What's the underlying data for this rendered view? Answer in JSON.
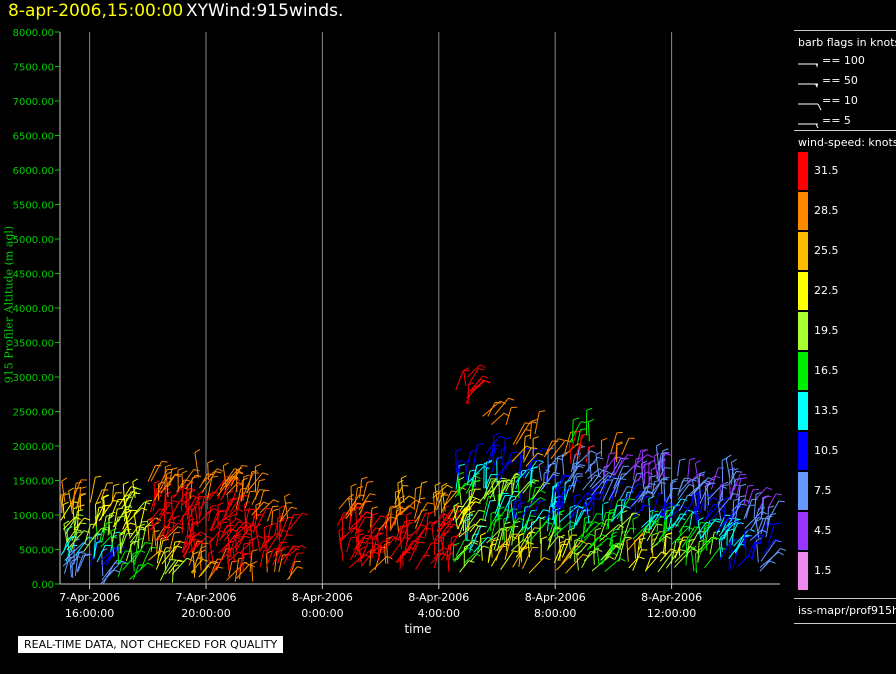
{
  "header": {
    "time": "8-apr-2006,15:00:00",
    "name": "XYWind:915winds."
  },
  "chart_data": {
    "type": "scatter",
    "title": "XYWind:915winds.",
    "subtitle": "8-apr-2006,15:00:00",
    "xlabel": "time",
    "ylabel": "915 Profiler Altitude (m agl)",
    "ylim": [
      0,
      8000
    ],
    "y_ticks": [
      "8000.00",
      "7500.00",
      "7000.00",
      "6500.00",
      "6000.00",
      "5500.00",
      "5000.00",
      "4500.00",
      "4000.00",
      "3500.00",
      "3000.00",
      "2500.00",
      "2000.00",
      "1500.00",
      "1000.00",
      "500.00",
      "0.00"
    ],
    "x_ticks": [
      {
        "date": "7-Apr-2006",
        "time": "16:00:00"
      },
      {
        "date": "7-Apr-2006",
        "time": "20:00:00"
      },
      {
        "date": "8-Apr-2006",
        "time": "0:00:00"
      },
      {
        "date": "8-Apr-2006",
        "time": "4:00:00"
      },
      {
        "date": "8-Apr-2006",
        "time": "8:00:00"
      },
      {
        "date": "8-Apr-2006",
        "time": "12:00:00"
      }
    ],
    "grid": "vertical",
    "series": [
      {
        "time": "7-Apr-2006 15:00",
        "levels": [
          [
            100,
            8
          ],
          [
            250,
            10
          ],
          [
            400,
            14
          ],
          [
            550,
            20
          ],
          [
            700,
            22
          ],
          [
            850,
            24
          ],
          [
            1000,
            26
          ],
          [
            1150,
            29
          ]
        ]
      },
      {
        "time": "7-Apr-2006 16:00",
        "levels": [
          [
            100,
            8
          ],
          [
            250,
            12
          ],
          [
            400,
            15
          ],
          [
            550,
            19
          ],
          [
            700,
            21
          ],
          [
            850,
            23
          ],
          [
            1000,
            24
          ],
          [
            1150,
            27
          ]
        ]
      },
      {
        "time": "7-Apr-2006 17:00",
        "levels": [
          [
            100,
            18
          ],
          [
            250,
            17
          ],
          [
            400,
            20
          ],
          [
            550,
            22
          ],
          [
            700,
            23
          ],
          [
            850,
            24
          ],
          [
            1000,
            22
          ],
          [
            1150,
            25
          ]
        ]
      },
      {
        "time": "7-Apr-2006 18:00",
        "levels": [
          [
            100,
            22
          ],
          [
            250,
            24
          ],
          [
            400,
            26
          ],
          [
            550,
            29
          ],
          [
            700,
            32
          ],
          [
            850,
            32
          ],
          [
            1000,
            33
          ],
          [
            1150,
            32
          ],
          [
            1300,
            31
          ],
          [
            1450,
            30
          ]
        ]
      },
      {
        "time": "7-Apr-2006 19:00",
        "levels": [
          [
            100,
            26
          ],
          [
            250,
            29
          ],
          [
            400,
            32
          ],
          [
            550,
            33
          ],
          [
            700,
            34
          ],
          [
            850,
            34
          ],
          [
            1000,
            33
          ],
          [
            1150,
            32
          ],
          [
            1300,
            31
          ],
          [
            1450,
            30
          ]
        ]
      },
      {
        "time": "7-Apr-2006 20:00",
        "levels": [
          [
            100,
            29
          ],
          [
            250,
            32
          ],
          [
            400,
            33
          ],
          [
            550,
            34
          ],
          [
            700,
            34
          ],
          [
            850,
            33
          ],
          [
            1000,
            32
          ],
          [
            1150,
            32
          ],
          [
            1300,
            31
          ],
          [
            1450,
            30
          ]
        ]
      },
      {
        "time": "7-Apr-2006 21:00",
        "levels": [
          [
            100,
            30
          ],
          [
            250,
            33
          ],
          [
            400,
            34
          ],
          [
            550,
            34
          ],
          [
            700,
            33
          ],
          [
            850,
            32
          ],
          [
            1000,
            31
          ],
          [
            1150,
            31
          ],
          [
            1300,
            30
          ]
        ]
      },
      {
        "time": "7-Apr-2006 22:00",
        "levels": [
          [
            100,
            31
          ],
          [
            250,
            33
          ],
          [
            400,
            33
          ],
          [
            550,
            32
          ],
          [
            700,
            32
          ],
          [
            850,
            31
          ]
        ]
      },
      {
        "time": "8-Apr-2006 0:30",
        "levels": [
          [
            250,
            32
          ],
          [
            400,
            33
          ],
          [
            550,
            34
          ],
          [
            700,
            33
          ],
          [
            850,
            32
          ],
          [
            1000,
            31
          ],
          [
            1150,
            30
          ]
        ]
      },
      {
        "time": "8-Apr-2006 1:30",
        "levels": [
          [
            250,
            31
          ],
          [
            400,
            32
          ],
          [
            550,
            33
          ],
          [
            700,
            32
          ],
          [
            850,
            31
          ]
        ]
      },
      {
        "time": "8-Apr-2006 2:30",
        "levels": [
          [
            250,
            32
          ],
          [
            400,
            33
          ],
          [
            550,
            34
          ],
          [
            700,
            33
          ],
          [
            850,
            31
          ],
          [
            1000,
            30
          ],
          [
            1150,
            27
          ]
        ]
      },
      {
        "time": "8-Apr-2006 3:30",
        "levels": [
          [
            250,
            33
          ],
          [
            400,
            34
          ],
          [
            550,
            34
          ],
          [
            700,
            33
          ],
          [
            850,
            32
          ],
          [
            1000,
            30
          ],
          [
            1150,
            28
          ]
        ]
      },
      {
        "time": "8-Apr-2006 4:30",
        "levels": [
          [
            250,
            21
          ],
          [
            400,
            18
          ],
          [
            550,
            16
          ],
          [
            700,
            22
          ],
          [
            850,
            25
          ],
          [
            1000,
            24
          ],
          [
            1150,
            21
          ],
          [
            1300,
            17
          ],
          [
            1450,
            14
          ],
          [
            1600,
            12
          ],
          [
            2700,
            32
          ],
          [
            2900,
            33
          ]
        ]
      },
      {
        "time": "8-Apr-2006 5:30",
        "levels": [
          [
            250,
            24
          ],
          [
            400,
            26
          ],
          [
            550,
            22
          ],
          [
            700,
            18
          ],
          [
            850,
            17
          ],
          [
            1000,
            15
          ],
          [
            1150,
            20
          ],
          [
            1300,
            22
          ],
          [
            1450,
            16
          ],
          [
            1600,
            13
          ],
          [
            1800,
            12
          ],
          [
            2400,
            31
          ]
        ]
      },
      {
        "time": "8-Apr-2006 6:30",
        "levels": [
          [
            250,
            26
          ],
          [
            400,
            23
          ],
          [
            550,
            21
          ],
          [
            700,
            17
          ],
          [
            850,
            14
          ],
          [
            1000,
            13
          ],
          [
            1150,
            18
          ],
          [
            1300,
            20
          ],
          [
            1450,
            14
          ],
          [
            1600,
            12
          ],
          [
            1800,
            26
          ],
          [
            2100,
            30
          ]
        ]
      },
      {
        "time": "8-Apr-2006 7:30",
        "levels": [
          [
            250,
            28
          ],
          [
            400,
            25
          ],
          [
            550,
            20
          ],
          [
            700,
            19
          ],
          [
            850,
            15
          ],
          [
            1000,
            12
          ],
          [
            1150,
            14
          ],
          [
            1300,
            12
          ],
          [
            1450,
            10
          ],
          [
            1600,
            9
          ],
          [
            1800,
            30
          ]
        ]
      },
      {
        "time": "8-Apr-2006 8:30",
        "levels": [
          [
            250,
            22
          ],
          [
            400,
            20
          ],
          [
            550,
            18
          ],
          [
            700,
            19
          ],
          [
            850,
            16
          ],
          [
            1000,
            13
          ],
          [
            1150,
            11
          ],
          [
            1300,
            10
          ],
          [
            1450,
            9
          ],
          [
            1600,
            8
          ],
          [
            1800,
            32
          ],
          [
            2100,
            17
          ]
        ]
      },
      {
        "time": "8-Apr-2006 9:30",
        "levels": [
          [
            250,
            19
          ],
          [
            400,
            22
          ],
          [
            550,
            18
          ],
          [
            700,
            20
          ],
          [
            850,
            17
          ],
          [
            1000,
            14
          ],
          [
            1150,
            11
          ],
          [
            1300,
            9
          ],
          [
            1450,
            8
          ],
          [
            1600,
            7
          ],
          [
            1800,
            31
          ]
        ]
      },
      {
        "time": "8-Apr-2006 10:30",
        "levels": [
          [
            250,
            24
          ],
          [
            400,
            26
          ],
          [
            550,
            21
          ],
          [
            700,
            19
          ],
          [
            850,
            16
          ],
          [
            1000,
            13
          ],
          [
            1150,
            10
          ],
          [
            1300,
            9
          ],
          [
            1450,
            7
          ],
          [
            1600,
            6
          ]
        ]
      },
      {
        "time": "8-Apr-2006 11:30",
        "levels": [
          [
            250,
            20
          ],
          [
            400,
            23
          ],
          [
            550,
            19
          ],
          [
            700,
            17
          ],
          [
            850,
            15
          ],
          [
            1000,
            12
          ],
          [
            1150,
            9
          ],
          [
            1300,
            8
          ],
          [
            1450,
            6
          ],
          [
            1600,
            9
          ]
        ]
      },
      {
        "time": "8-Apr-2006 12:30",
        "levels": [
          [
            250,
            17
          ],
          [
            400,
            21
          ],
          [
            550,
            19
          ],
          [
            700,
            16
          ],
          [
            850,
            13
          ],
          [
            1000,
            11
          ],
          [
            1150,
            9
          ],
          [
            1300,
            8
          ],
          [
            1450,
            7
          ]
        ]
      },
      {
        "time": "8-Apr-2006 13:30",
        "levels": [
          [
            250,
            12
          ],
          [
            400,
            14
          ],
          [
            550,
            16
          ],
          [
            700,
            14
          ],
          [
            850,
            11
          ],
          [
            1000,
            9
          ],
          [
            1150,
            8
          ],
          [
            1300,
            7
          ],
          [
            1450,
            10
          ]
        ]
      },
      {
        "time": "8-Apr-2006 14:30",
        "levels": [
          [
            250,
            9
          ],
          [
            400,
            11
          ],
          [
            550,
            12
          ],
          [
            700,
            10
          ],
          [
            850,
            9
          ],
          [
            1000,
            8
          ],
          [
            1150,
            7
          ]
        ]
      }
    ]
  },
  "x_axis_title": "time",
  "warning": "REAL-TIME DATA, NOT CHECKED FOR QUALITY",
  "legend": {
    "barb_title": "barb flags in knots",
    "barbs": [
      {
        "label": "== 100",
        "kind": "flag100"
      },
      {
        "label": "== 50",
        "kind": "flag50"
      },
      {
        "label": "== 10",
        "kind": "full"
      },
      {
        "label": "== 5",
        "kind": "half"
      }
    ],
    "speed_title": "wind-speed: knots",
    "colors": [
      {
        "value": "31.5",
        "color": "#ff0000"
      },
      {
        "value": "28.5",
        "color": "#ff8800"
      },
      {
        "value": "25.5",
        "color": "#ffbb00"
      },
      {
        "value": "22.5",
        "color": "#ffff00"
      },
      {
        "value": "19.5",
        "color": "#aaff33"
      },
      {
        "value": "16.5",
        "color": "#00ee00"
      },
      {
        "value": "13.5",
        "color": "#00ffff"
      },
      {
        "value": "10.5",
        "color": "#0000ff"
      },
      {
        "value": "7.5",
        "color": "#6699ff"
      },
      {
        "value": "4.5",
        "color": "#9933ff"
      },
      {
        "value": "1.5",
        "color": "#ee88ee"
      }
    ],
    "source": "iss-mapr/prof915h"
  }
}
